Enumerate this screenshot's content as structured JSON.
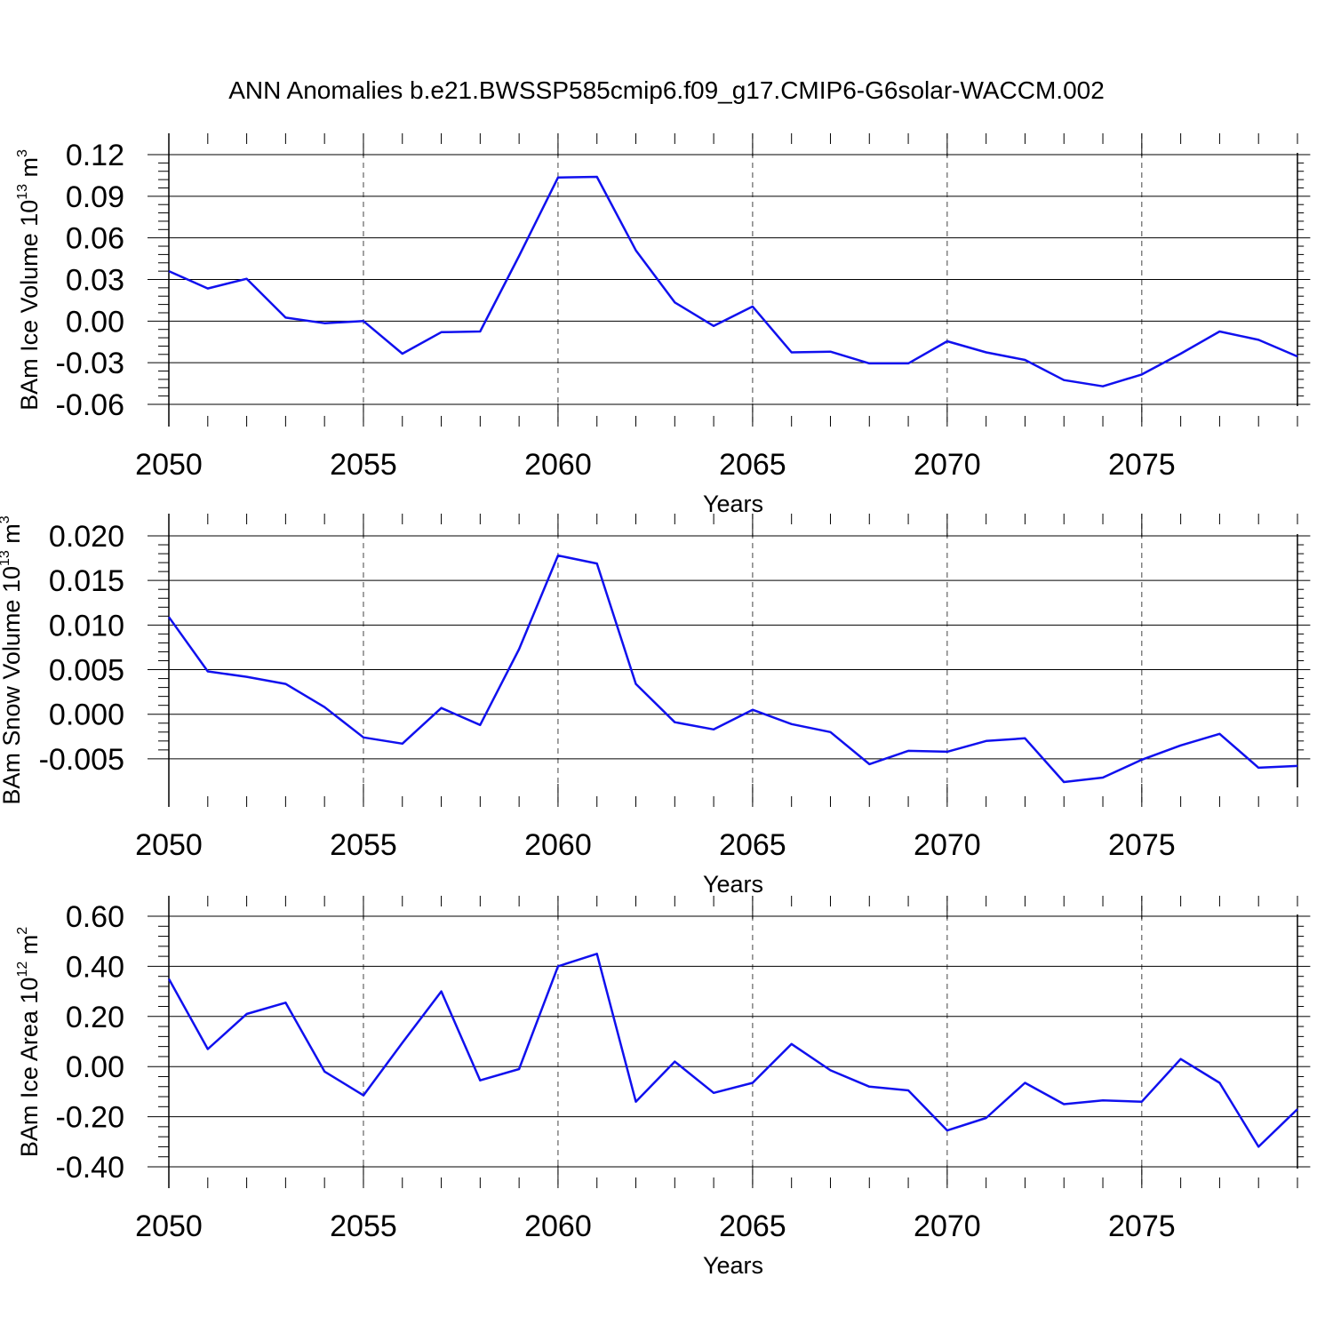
{
  "chart_data": {
    "type": "line",
    "title": "ANN Anomalies b.e21.BWSSP585cmip6.f09_g17.CMIP6-G6solar-WACCM.002",
    "line_color": "#1010ee",
    "grid": "vertical dashed at major x ticks",
    "panels": [
      {
        "ylabel": "BAm Ice Volume 10",
        "ylabel_exp": "13",
        "ylabel_unit": "m",
        "ylabel_unit_exp": "3",
        "xlabel": "Years",
        "xlim": [
          2050,
          2079
        ],
        "ylim": [
          -0.06,
          0.12
        ],
        "x_ticks": [
          "2050",
          "2055",
          "2060",
          "2065",
          "2070",
          "2075"
        ],
        "y_ticks": [
          "0.12",
          "0.09",
          "0.06",
          "0.03",
          "0.00",
          "-0.03",
          "-0.06"
        ],
        "x": [
          2050,
          2051,
          2052,
          2053,
          2054,
          2055,
          2056,
          2057,
          2058,
          2059,
          2060,
          2061,
          2062,
          2063,
          2064,
          2065,
          2066,
          2067,
          2068,
          2069,
          2070,
          2071,
          2072,
          2073,
          2074,
          2075,
          2076,
          2077,
          2078,
          2079
        ],
        "values": [
          0.036,
          0.0235,
          0.0305,
          0.0025,
          -0.0015,
          0.0,
          -0.0235,
          -0.008,
          -0.0075,
          0.047,
          0.1035,
          0.104,
          0.051,
          0.0135,
          -0.0035,
          0.0105,
          -0.0225,
          -0.022,
          -0.0305,
          -0.0305,
          -0.0145,
          -0.0225,
          -0.028,
          -0.0425,
          -0.047,
          -0.0385,
          -0.0235,
          -0.0075,
          -0.0135,
          -0.0255
        ]
      },
      {
        "ylabel": "BAm Snow Volume 10",
        "ylabel_exp": "13",
        "ylabel_unit": "m",
        "ylabel_unit_exp": "3",
        "xlabel": "Years",
        "xlim": [
          2050,
          2079
        ],
        "ylim": [
          -0.008,
          0.02
        ],
        "x_ticks": [
          "2050",
          "2055",
          "2060",
          "2065",
          "2070",
          "2075"
        ],
        "y_ticks": [
          "0.020",
          "0.015",
          "0.010",
          "0.005",
          "0.000",
          "-0.005"
        ],
        "x": [
          2050,
          2051,
          2052,
          2053,
          2054,
          2055,
          2056,
          2057,
          2058,
          2059,
          2060,
          2061,
          2062,
          2063,
          2064,
          2065,
          2066,
          2067,
          2068,
          2069,
          2070,
          2071,
          2072,
          2073,
          2074,
          2075,
          2076,
          2077,
          2078,
          2079
        ],
        "values": [
          0.0109,
          0.0048,
          0.0042,
          0.0034,
          0.0008,
          -0.0026,
          -0.0033,
          0.0007,
          -0.0012,
          0.0073,
          0.0178,
          0.0169,
          0.0034,
          -0.0009,
          -0.0017,
          0.0005,
          -0.0011,
          -0.002,
          -0.0056,
          -0.0041,
          -0.0042,
          -0.003,
          -0.0027,
          -0.0076,
          -0.0071,
          -0.0051,
          -0.0035,
          -0.0022,
          -0.006,
          -0.0058
        ]
      },
      {
        "ylabel": "BAm Ice Area 10",
        "ylabel_exp": "12",
        "ylabel_unit": "m",
        "ylabel_unit_exp": "2",
        "xlabel": "Years",
        "xlim": [
          2050,
          2079
        ],
        "ylim": [
          -0.4,
          0.6
        ],
        "x_ticks": [
          "2050",
          "2055",
          "2060",
          "2065",
          "2070",
          "2075"
        ],
        "y_ticks": [
          "0.60",
          "0.40",
          "0.20",
          "0.00",
          "-0.20",
          "-0.40"
        ],
        "x": [
          2050,
          2051,
          2052,
          2053,
          2054,
          2055,
          2056,
          2057,
          2058,
          2059,
          2060,
          2061,
          2062,
          2063,
          2064,
          2065,
          2066,
          2067,
          2068,
          2069,
          2070,
          2071,
          2072,
          2073,
          2074,
          2075,
          2076,
          2077,
          2078,
          2079
        ],
        "values": [
          0.35,
          0.07,
          0.21,
          0.255,
          -0.02,
          -0.115,
          0.095,
          0.3,
          -0.055,
          -0.01,
          0.4,
          0.45,
          -0.14,
          0.02,
          -0.105,
          -0.065,
          0.09,
          -0.015,
          -0.08,
          -0.095,
          -0.255,
          -0.205,
          -0.065,
          -0.15,
          -0.135,
          -0.14,
          0.03,
          -0.065,
          -0.32,
          -0.17
        ]
      }
    ]
  }
}
